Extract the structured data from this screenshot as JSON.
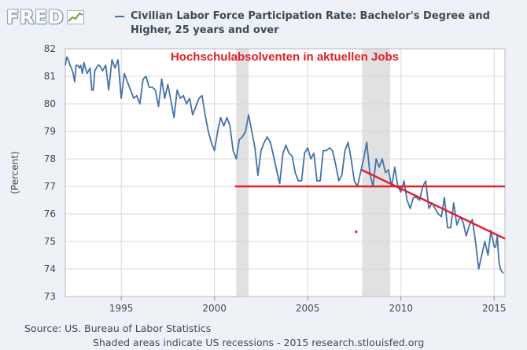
{
  "branding": {
    "logo_text": "FRED",
    "logo_icon": "fred-chart-icon"
  },
  "legend": {
    "series_label": "Civilian Labor Force Participation Rate: Bachelor's Degree and Higher, 25 years and over",
    "color": "#4572a7"
  },
  "footer": {
    "source": "Source: US. Bureau of Labor Statistics",
    "note": "Shaded areas indicate US recessions - 2015 research.stlouisfed.org"
  },
  "chart_data": {
    "type": "line",
    "title": "Hochschulabsolventen in aktuellen Jobs",
    "title_color": "#e0202a",
    "xlabel": "",
    "ylabel": "(Percent)",
    "xlim": [
      1992,
      2015.58
    ],
    "ylim": [
      73,
      82
    ],
    "x_ticks": [
      1995,
      2000,
      2005,
      2010,
      2015
    ],
    "y_ticks": [
      73,
      74,
      75,
      76,
      77,
      78,
      79,
      80,
      81,
      82
    ],
    "grid": true,
    "recessions": [
      [
        2001.17,
        2001.83
      ],
      [
        2007.92,
        2009.42
      ]
    ],
    "overlay_lines": [
      {
        "name": "horizontal-support-line",
        "x": [
          2001.1,
          2015.58
        ],
        "y": [
          77.0,
          77.0
        ],
        "color": "#e0202a"
      },
      {
        "name": "downtrend-line",
        "x": [
          2007.9,
          2015.58
        ],
        "y": [
          77.6,
          75.1
        ],
        "color": "#e0202a"
      }
    ],
    "overlay_marks": [
      {
        "name": "red-dot-mark",
        "x": 2007.6,
        "y": 75.35,
        "color": "#e0202a"
      }
    ],
    "series": [
      {
        "name": "Civilian Labor Force Participation Rate: Bachelor's Degree and Higher, 25 years and over",
        "color": "#4572a7",
        "x": [
          1992.0,
          1992.08,
          1992.17,
          1992.25,
          1992.33,
          1992.42,
          1992.5,
          1992.58,
          1992.67,
          1992.75,
          1992.83,
          1992.92,
          1993.0,
          1993.08,
          1993.17,
          1993.25,
          1993.33,
          1993.42,
          1993.5,
          1993.58,
          1993.67,
          1993.75,
          1993.83,
          1993.92,
          1994.0,
          1994.17,
          1994.33,
          1994.5,
          1994.67,
          1994.83,
          1995.0,
          1995.17,
          1995.33,
          1995.5,
          1995.67,
          1995.83,
          1996.0,
          1996.17,
          1996.33,
          1996.5,
          1996.67,
          1996.83,
          1997.0,
          1997.17,
          1997.33,
          1997.5,
          1997.67,
          1997.83,
          1998.0,
          1998.17,
          1998.33,
          1998.5,
          1998.67,
          1998.83,
          1999.0,
          1999.17,
          1999.33,
          1999.5,
          1999.67,
          1999.83,
          2000.0,
          2000.17,
          2000.33,
          2000.5,
          2000.67,
          2000.83,
          2001.0,
          2001.17,
          2001.33,
          2001.5,
          2001.67,
          2001.83,
          2002.0,
          2002.17,
          2002.33,
          2002.5,
          2002.67,
          2002.83,
          2003.0,
          2003.17,
          2003.33,
          2003.5,
          2003.67,
          2003.83,
          2004.0,
          2004.17,
          2004.33,
          2004.5,
          2004.67,
          2004.83,
          2005.0,
          2005.17,
          2005.33,
          2005.5,
          2005.67,
          2005.83,
          2006.0,
          2006.17,
          2006.33,
          2006.5,
          2006.67,
          2006.83,
          2007.0,
          2007.17,
          2007.33,
          2007.5,
          2007.67,
          2007.83,
          2008.0,
          2008.17,
          2008.33,
          2008.5,
          2008.67,
          2008.83,
          2009.0,
          2009.17,
          2009.33,
          2009.5,
          2009.67,
          2009.83,
          2010.0,
          2010.17,
          2010.33,
          2010.5,
          2010.67,
          2010.83,
          2011.0,
          2011.17,
          2011.33,
          2011.5,
          2011.67,
          2011.83,
          2012.0,
          2012.17,
          2012.33,
          2012.5,
          2012.67,
          2012.83,
          2013.0,
          2013.17,
          2013.33,
          2013.5,
          2013.67,
          2013.83,
          2014.0,
          2014.17,
          2014.33,
          2014.5,
          2014.67,
          2014.83,
          2015.0,
          2015.08,
          2015.17,
          2015.25,
          2015.33,
          2015.42,
          2015.5
        ],
        "y": [
          81.4,
          81.7,
          81.6,
          81.4,
          81.3,
          81.1,
          80.8,
          81.4,
          81.4,
          81.3,
          81.4,
          81.1,
          81.5,
          81.3,
          81.1,
          81.2,
          81.3,
          80.5,
          80.5,
          81.2,
          81.3,
          81.4,
          81.4,
          81.3,
          81.2,
          81.4,
          80.5,
          81.6,
          81.3,
          81.6,
          80.2,
          81.1,
          80.8,
          80.5,
          80.2,
          80.3,
          80.0,
          80.9,
          81.0,
          80.6,
          80.6,
          80.5,
          79.9,
          80.9,
          80.2,
          80.7,
          80.1,
          79.5,
          80.5,
          80.2,
          80.3,
          80.0,
          80.2,
          79.6,
          79.9,
          80.2,
          80.3,
          79.6,
          79.0,
          78.6,
          78.3,
          79.0,
          79.5,
          79.2,
          79.5,
          79.2,
          78.3,
          78.0,
          78.7,
          78.8,
          79.0,
          79.6,
          79.0,
          78.4,
          77.4,
          78.3,
          78.6,
          78.8,
          78.6,
          78.1,
          77.6,
          77.1,
          78.2,
          78.5,
          78.2,
          78.1,
          77.5,
          77.2,
          77.2,
          78.2,
          78.4,
          78.0,
          78.2,
          77.2,
          77.2,
          78.3,
          78.3,
          78.4,
          78.3,
          77.8,
          77.2,
          77.4,
          78.3,
          78.6,
          78.0,
          77.2,
          77.0,
          77.5,
          78.0,
          78.6,
          77.5,
          77.0,
          78.0,
          77.7,
          78.0,
          77.5,
          77.6,
          77.0,
          77.7,
          77.0,
          76.8,
          77.2,
          76.5,
          76.2,
          76.6,
          76.6,
          76.5,
          77.0,
          77.2,
          76.2,
          76.4,
          76.2,
          76.0,
          75.9,
          76.6,
          75.5,
          75.5,
          76.4,
          75.6,
          75.9,
          75.7,
          75.2,
          75.6,
          75.8,
          75.0,
          74.0,
          74.5,
          75.0,
          74.5,
          75.4,
          74.8,
          74.8,
          75.2,
          74.3,
          74.0,
          73.9,
          73.85
        ]
      }
    ]
  }
}
